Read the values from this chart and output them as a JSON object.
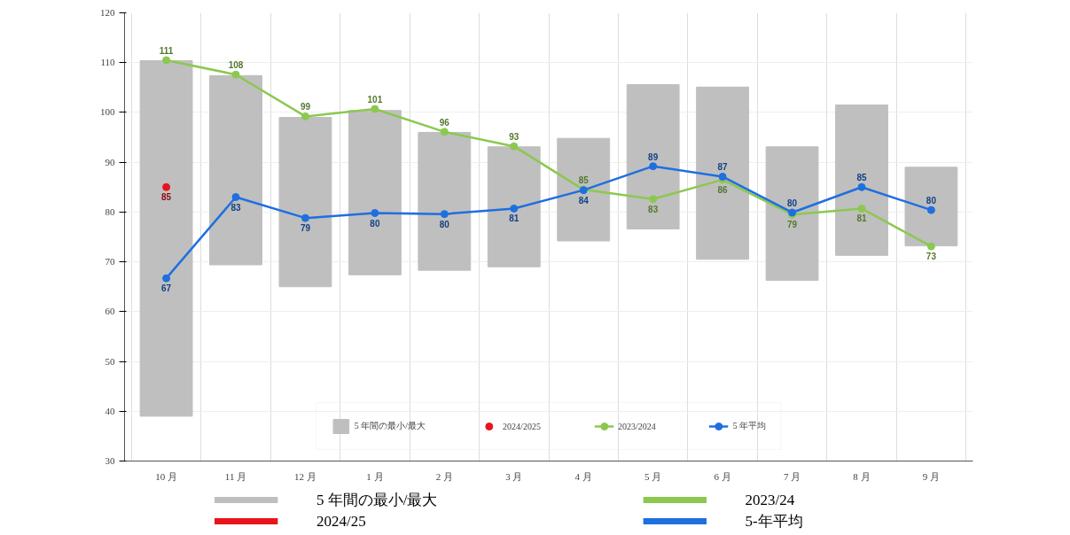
{
  "chart_data": {
    "type": "bar",
    "categories": [
      "10 月",
      "11 月",
      "12 月",
      "1 月",
      "2 月",
      "3 月",
      "4 月",
      "5 月",
      "6 月",
      "7 月",
      "8 月",
      "9 月"
    ],
    "ylim": [
      30,
      120
    ],
    "yticks": [
      30,
      40,
      50,
      60,
      70,
      80,
      90,
      100,
      110,
      120
    ],
    "grid": true,
    "legend": "bottom",
    "marker": "circle",
    "line_style": "solid",
    "series": [
      {
        "name": "5 年間の最小/最大",
        "color": "#bfbfbf",
        "base": [
          39.0,
          69.4,
          65.0,
          67.4,
          68.3,
          69.0,
          74.2,
          76.6,
          70.5,
          66.3,
          71.3,
          73.2
        ],
        "values": [
          71.4,
          38.0,
          34.0,
          33.0,
          27.7,
          24.1,
          20.6,
          29.0,
          34.6,
          26.8,
          30.2,
          15.8
        ]
      },
      {
        "name": "2024/2025",
        "type": "line",
        "color": "#e8141c",
        "values": [
          85,
          null,
          null,
          null,
          null,
          null,
          null,
          null,
          null,
          null,
          null,
          null
        ],
        "value_labels": [
          "85",
          null,
          null,
          null,
          null,
          null,
          null,
          null,
          null,
          null,
          null,
          null
        ]
      },
      {
        "name": "2023/2024",
        "type": "line",
        "color": "#8cc850",
        "values": [
          110.5,
          107.6,
          99.2,
          100.7,
          96.1,
          93.2,
          84.5,
          82.6,
          86.5,
          79.5,
          80.7,
          73.1
        ],
        "value_labels": [
          "111",
          "108",
          "99",
          "101",
          "96",
          "93",
          "85",
          "83",
          "86",
          "79",
          "81",
          "73"
        ]
      },
      {
        "name": "5 年平均",
        "type": "line",
        "color": "#1f6fe0",
        "values": [
          66.7,
          83.0,
          78.8,
          79.8,
          79.6,
          80.7,
          84.4,
          89.2,
          87.1,
          79.9,
          85.0,
          80.4
        ],
        "value_labels": [
          "67",
          "83",
          "79",
          "80",
          "80",
          "81",
          "84",
          "89",
          "87",
          "80",
          "85",
          "80"
        ]
      }
    ],
    "annotations": [
      "5 年間の最小/最大",
      "2024/25",
      "2023/24",
      "5-年平均"
    ]
  }
}
